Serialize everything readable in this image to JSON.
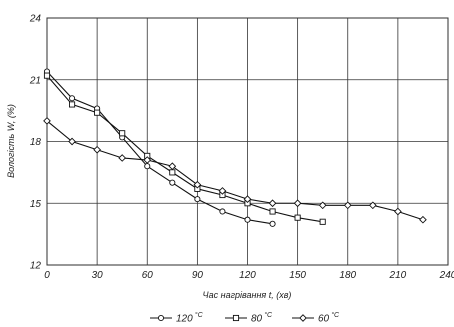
{
  "chart_data": {
    "type": "line",
    "xlabel": "Час нагрівання t, (хв)",
    "ylabel": "Вологість W, (%)",
    "xlim": [
      0,
      240
    ],
    "ylim": [
      12,
      24
    ],
    "xticks": [
      0,
      30,
      60,
      90,
      120,
      150,
      180,
      210,
      240
    ],
    "yticks": [
      12,
      15,
      18,
      21,
      24
    ],
    "grid": true,
    "legend_position": "bottom",
    "series": [
      {
        "name": "120 °C",
        "name_base": "120",
        "name_unit": "°C",
        "marker": "circle",
        "x": [
          0,
          15,
          30,
          45,
          60,
          75,
          90,
          105,
          120,
          135
        ],
        "y": [
          21.4,
          20.1,
          19.6,
          18.2,
          16.8,
          16.0,
          15.2,
          14.6,
          14.2,
          14.0
        ]
      },
      {
        "name": "80 °C",
        "name_base": "80",
        "name_unit": "°C",
        "marker": "square",
        "x": [
          0,
          15,
          30,
          45,
          60,
          75,
          90,
          105,
          120,
          135,
          150,
          165
        ],
        "y": [
          21.2,
          19.8,
          19.4,
          18.4,
          17.3,
          16.5,
          15.7,
          15.4,
          15.0,
          14.6,
          14.3,
          14.1
        ]
      },
      {
        "name": "60 °C",
        "name_base": "60",
        "name_unit": "°C",
        "marker": "diamond",
        "x": [
          0,
          15,
          30,
          45,
          60,
          75,
          90,
          105,
          120,
          135,
          150,
          165,
          180,
          195,
          210,
          225
        ],
        "y": [
          19.0,
          18.0,
          17.6,
          17.2,
          17.1,
          16.8,
          15.9,
          15.6,
          15.2,
          15.0,
          15.0,
          14.9,
          14.9,
          14.9,
          14.6,
          14.2
        ]
      }
    ]
  }
}
